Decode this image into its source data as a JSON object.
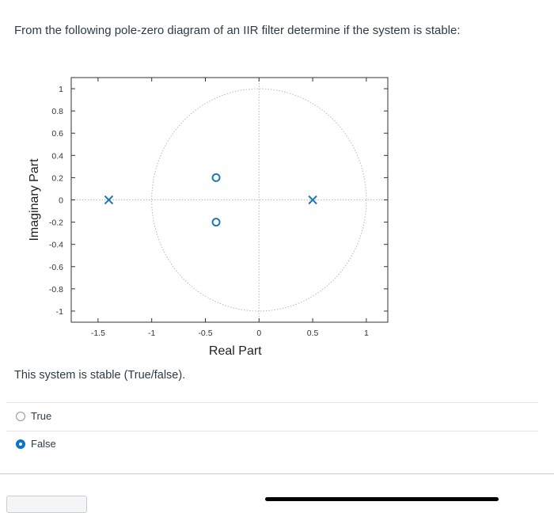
{
  "question": {
    "text": "From the following pole-zero diagram of an IIR filter determine if the system is stable:"
  },
  "chart_data": {
    "type": "scatter",
    "title": "",
    "xlabel": "Real Part",
    "ylabel": "Imaginary Part",
    "xlim": [
      -1.75,
      1.2
    ],
    "ylim": [
      -1.1,
      1.1
    ],
    "xticks": [
      "-1.5",
      "-1",
      "-0.5",
      "0",
      "0.5",
      "1"
    ],
    "xtick_values": [
      -1.5,
      -1,
      -0.5,
      0,
      0.5,
      1
    ],
    "yticks": [
      "1",
      "0.8",
      "0.6",
      "0.4",
      "0.2",
      "0",
      "-0.2",
      "-0.4",
      "-0.6",
      "-0.8",
      "-1"
    ],
    "ytick_values": [
      1,
      0.8,
      0.6,
      0.4,
      0.2,
      0,
      -0.2,
      -0.4,
      -0.6,
      -0.8,
      -1
    ],
    "unit_circle": true,
    "grid": false,
    "series": [
      {
        "marker": "x",
        "points": [
          [
            -1.4,
            0
          ],
          [
            0.5,
            0
          ]
        ]
      },
      {
        "marker": "o",
        "points": [
          [
            -0.4,
            0.2
          ],
          [
            -0.4,
            -0.2
          ]
        ]
      }
    ],
    "colors": {
      "marker": "#1f77b4",
      "axis": "#333333",
      "circle": "#b9b9b9"
    }
  },
  "prompt": {
    "text": "This system is stable (True/false)."
  },
  "options": [
    {
      "label": "True",
      "selected": false
    },
    {
      "label": "False",
      "selected": true
    }
  ],
  "colors": {
    "accent": "#0b74c4",
    "text": "#2d3b45",
    "divider": "#e3e6e8"
  }
}
